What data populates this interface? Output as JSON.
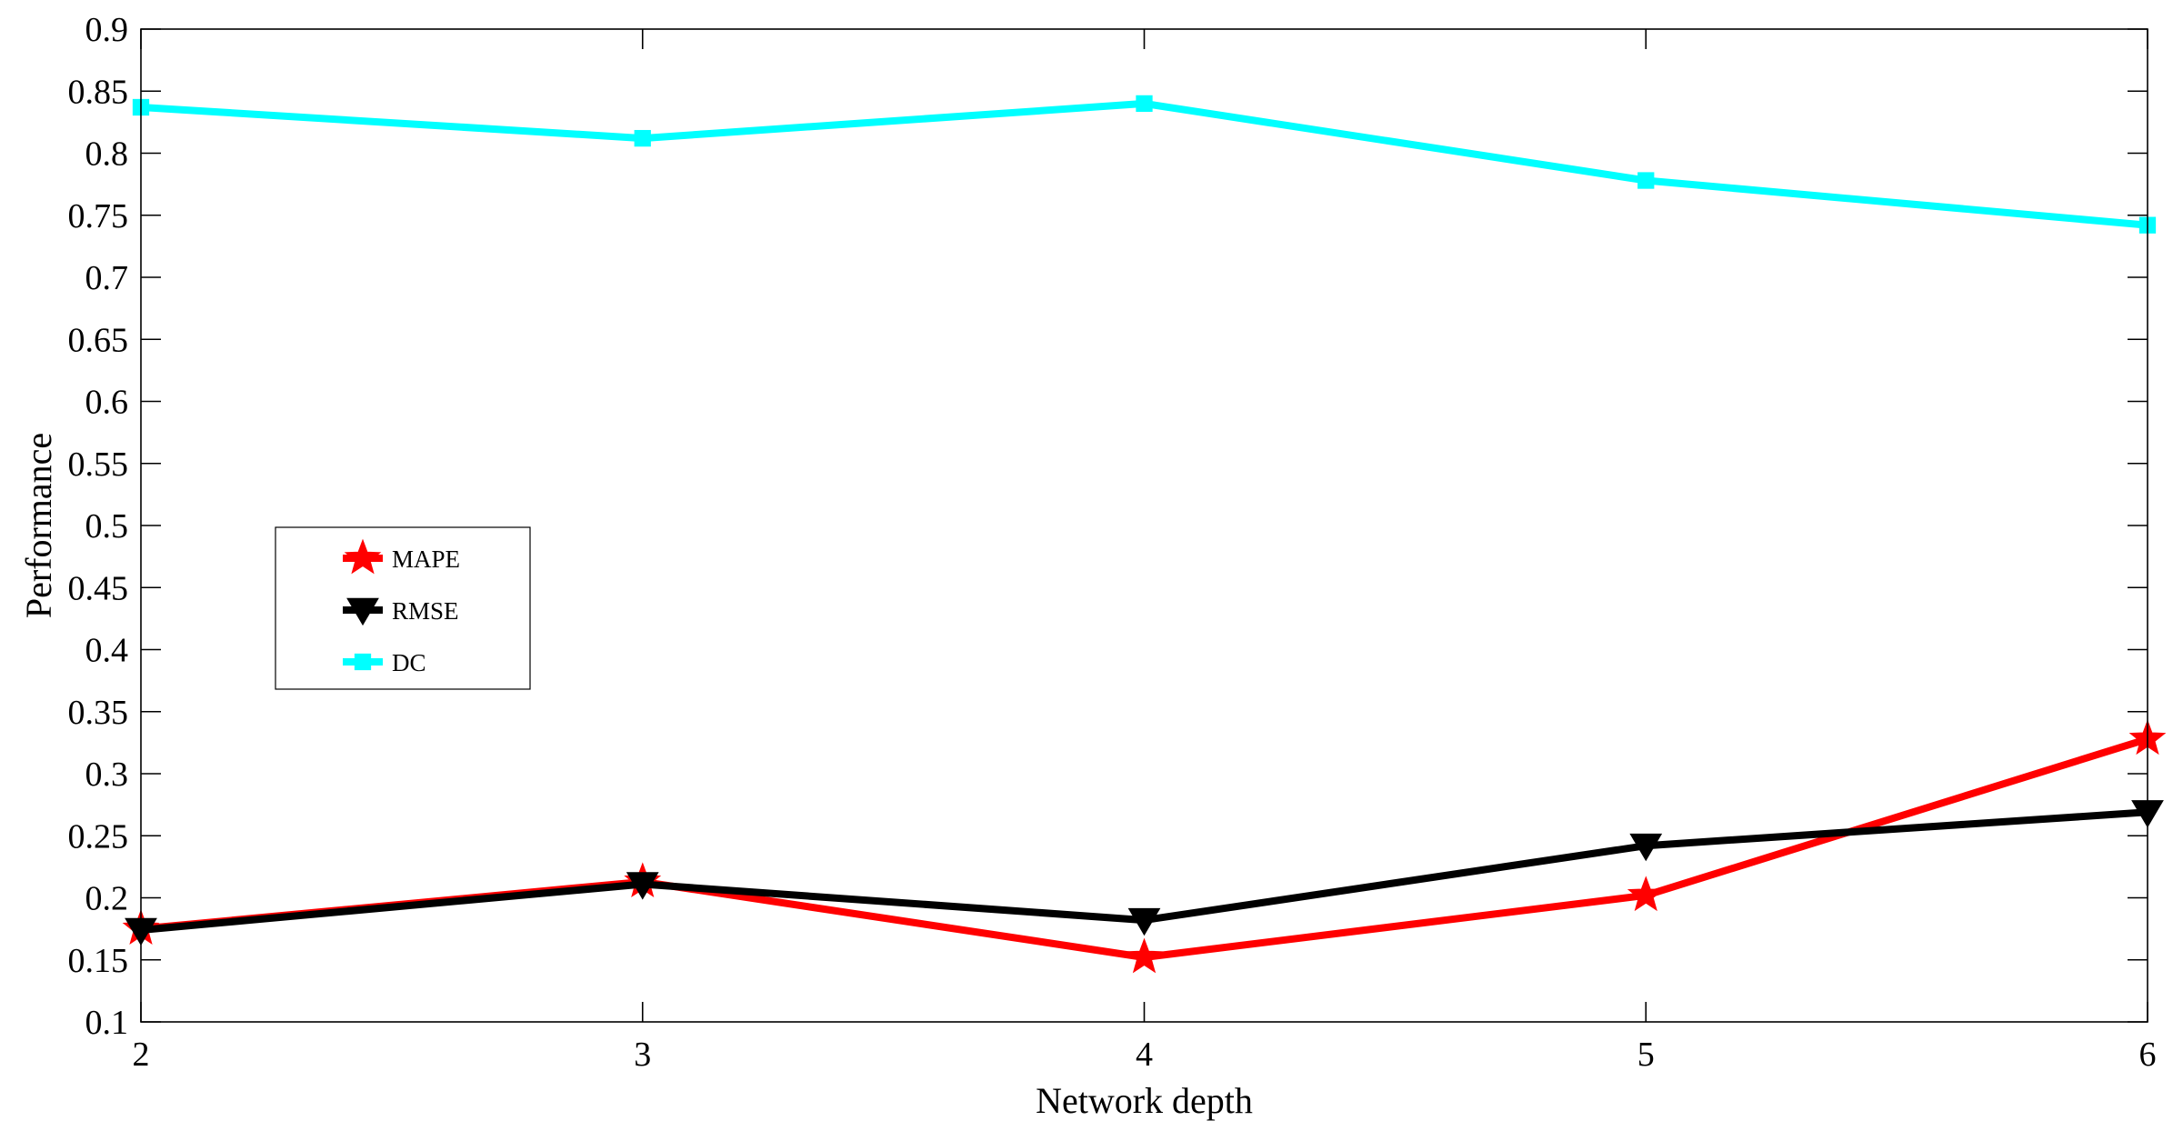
{
  "chart_data": {
    "type": "line",
    "xlabel": "Network depth",
    "ylabel": "Performance",
    "xlim": [
      2,
      6
    ],
    "ylim": [
      0.1,
      0.9
    ],
    "x": [
      2,
      3,
      4,
      5,
      6
    ],
    "xticks": [
      "2",
      "3",
      "4",
      "5",
      "6"
    ],
    "yticks": [
      "0.1",
      "0.15",
      "0.2",
      "0.25",
      "0.3",
      "0.35",
      "0.4",
      "0.45",
      "0.5",
      "0.55",
      "0.6",
      "0.65",
      "0.7",
      "0.75",
      "0.8",
      "0.85",
      "0.9"
    ],
    "grid": false,
    "legend_position": "middle-left",
    "series": [
      {
        "name": "MAPE",
        "values": [
          0.175,
          0.213,
          0.152,
          0.202,
          0.328
        ],
        "color": "#ff0000",
        "marker": "star"
      },
      {
        "name": "RMSE",
        "values": [
          0.174,
          0.211,
          0.182,
          0.242,
          0.269
        ],
        "color": "#000000",
        "marker": "triangle-down"
      },
      {
        "name": "DC",
        "values": [
          0.837,
          0.812,
          0.84,
          0.778,
          0.742
        ],
        "color": "#00ffff",
        "marker": "square"
      }
    ]
  }
}
